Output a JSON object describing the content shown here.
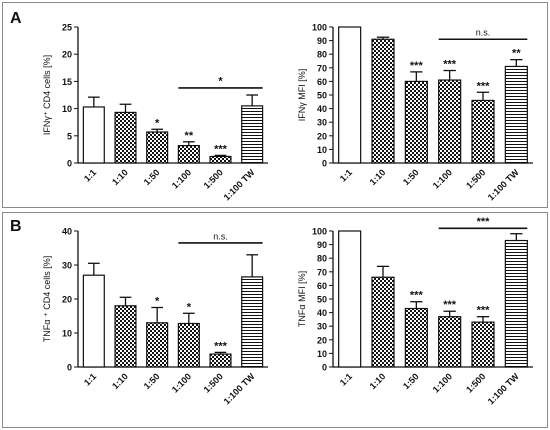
{
  "panels": {
    "a": {
      "letter": "A"
    },
    "b": {
      "letter": "B"
    }
  },
  "colors": {
    "axis": "#111111",
    "bar_fill": "#ffffff",
    "bar_stroke": "#111111"
  },
  "chart_data": [
    {
      "type": "bar",
      "title": "",
      "ylabel": "IFNγ⁺ CD4 cells [%]",
      "xlabel": "",
      "ylim": [
        0,
        25
      ],
      "yticks": [
        0,
        5,
        10,
        15,
        20,
        25
      ],
      "categories": [
        "1:1",
        "1:10",
        "1:50",
        "1:100",
        "1:500",
        "1:100 TW"
      ],
      "values": [
        10.3,
        9.3,
        5.7,
        3.2,
        1.2,
        10.5
      ],
      "errors": [
        1.8,
        1.5,
        0.5,
        0.7,
        0.2,
        2.0
      ],
      "patterns": [
        "empty",
        "checker",
        "checker",
        "checker",
        "checker",
        "hlines"
      ],
      "significance": [
        "",
        "",
        "*",
        "**",
        "***",
        ""
      ],
      "bracket": {
        "from": "1:100",
        "to": "1:100 TW",
        "label": "*",
        "y": 13.8
      },
      "grid": false
    },
    {
      "type": "bar",
      "title": "",
      "ylabel": "IFNγ MFI [%]",
      "xlabel": "",
      "ylim": [
        0,
        100
      ],
      "yticks": [
        0,
        10,
        20,
        30,
        40,
        50,
        60,
        70,
        80,
        90,
        100
      ],
      "categories": [
        "1:1",
        "1:10",
        "1:50",
        "1:100",
        "1:500",
        "1:100 TW"
      ],
      "values": [
        100,
        91,
        60,
        61,
        46,
        71
      ],
      "errors": [
        0,
        1.5,
        7,
        7,
        6,
        5
      ],
      "patterns": [
        "empty",
        "checker",
        "checker",
        "checker",
        "checker",
        "hlines"
      ],
      "significance": [
        "",
        "",
        "***",
        "***",
        "***",
        "**"
      ],
      "bracket": {
        "from": "1:100",
        "to": "1:100 TW",
        "label": "n.s.",
        "y": 91
      },
      "grid": false
    },
    {
      "type": "bar",
      "title": "",
      "ylabel": "TNFα ⁺ CD4  cells [%]",
      "xlabel": "",
      "ylim": [
        0,
        40
      ],
      "yticks": [
        0,
        10,
        20,
        30,
        40
      ],
      "categories": [
        "1:1",
        "1:10",
        "1:50",
        "1:100",
        "1:500",
        "1:100 TW"
      ],
      "values": [
        27,
        18,
        13,
        12.8,
        3.8,
        26.5
      ],
      "errors": [
        3.5,
        2.5,
        4.5,
        3,
        0.5,
        6.5
      ],
      "patterns": [
        "empty",
        "checker",
        "checker",
        "checker",
        "checker",
        "hlines"
      ],
      "significance": [
        "",
        "",
        "*",
        "*",
        "***",
        ""
      ],
      "bracket": {
        "from": "1:100",
        "to": "1:100 TW",
        "label": "n.s.",
        "y": 36.5
      },
      "grid": false
    },
    {
      "type": "bar",
      "title": "",
      "ylabel": "TNFα MFI [%]",
      "xlabel": "",
      "ylim": [
        0,
        100
      ],
      "yticks": [
        0,
        10,
        20,
        30,
        40,
        50,
        60,
        70,
        80,
        90,
        100
      ],
      "categories": [
        "1:1",
        "1:10",
        "1:50",
        "1:100",
        "1:500",
        "1:100 TW"
      ],
      "values": [
        100,
        66,
        43,
        37,
        33,
        93
      ],
      "errors": [
        0,
        8,
        5,
        4,
        4,
        5
      ],
      "patterns": [
        "empty",
        "checker",
        "checker",
        "checker",
        "checker",
        "hlines"
      ],
      "significance": [
        "",
        "",
        "***",
        "***",
        "***",
        ""
      ],
      "bracket": {
        "from": "1:100",
        "to": "1:100 TW",
        "label": "***",
        "y": 102
      },
      "grid": false
    }
  ]
}
